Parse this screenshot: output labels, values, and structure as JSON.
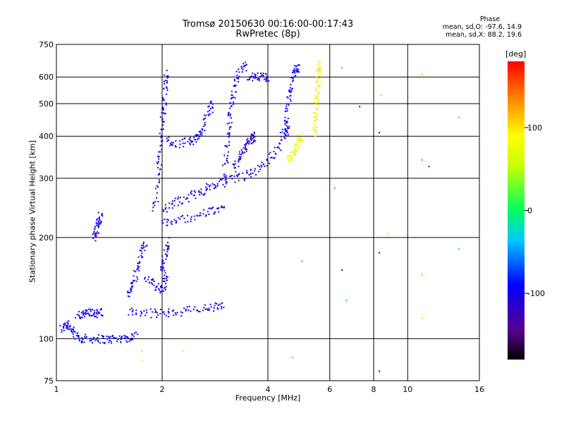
{
  "header": {
    "title": "Tromsø 20150630 00:16:00-00:17:43",
    "subtitle": "RwPretec (8p)"
  },
  "stats": {
    "title": "Phase",
    "line_o": "mean, sd,O: -97.6, 14.9",
    "line_x": "mean, sd,X: 88.2, 19.6"
  },
  "colorbar": {
    "unit": "[deg]",
    "ticks": [
      "100",
      "0",
      "-100"
    ],
    "tick_values": [
      100,
      0,
      -100
    ],
    "range": [
      -180,
      180
    ]
  },
  "chart_data": {
    "type": "scatter",
    "xlabel": "Frequency [MHz]",
    "ylabel": "Stationary phase Virtual Height [km]",
    "xscale": "log",
    "yscale": "log",
    "xlim": [
      1,
      16
    ],
    "ylim": [
      75,
      750
    ],
    "xticks": [
      1,
      2,
      4,
      6,
      8,
      10,
      16
    ],
    "xtick_labels": [
      "1",
      "2",
      "4",
      "6",
      "8",
      "10",
      "16"
    ],
    "yticks": [
      75,
      100,
      200,
      300,
      400,
      500,
      600,
      750
    ],
    "ytick_labels": [
      "75",
      "100",
      "200",
      "300",
      "400",
      "500",
      "600",
      "750"
    ],
    "grid": true,
    "traces": [
      {
        "phase": -95,
        "points": [
          [
            1.03,
            106
          ],
          [
            1.07,
            112
          ],
          [
            1.1,
            106
          ],
          [
            1.15,
            101
          ],
          [
            1.2,
            100
          ],
          [
            1.3,
            100
          ],
          [
            1.4,
            99.5
          ],
          [
            1.5,
            100
          ],
          [
            1.6,
            100.5
          ],
          [
            1.7,
            102
          ]
        ]
      },
      {
        "phase": -100,
        "points": [
          [
            1.15,
            118
          ],
          [
            1.2,
            119
          ],
          [
            1.25,
            119
          ],
          [
            1.3,
            119
          ],
          [
            1.35,
            120
          ]
        ]
      },
      {
        "phase": -100,
        "points": [
          [
            1.28,
            200
          ],
          [
            1.3,
            210
          ],
          [
            1.32,
            225
          ],
          [
            1.34,
            235
          ]
        ]
      },
      {
        "phase": -95,
        "points": [
          [
            1.6,
            135
          ],
          [
            1.65,
            145
          ],
          [
            1.7,
            160
          ],
          [
            1.75,
            180
          ],
          [
            1.8,
            195
          ]
        ]
      },
      {
        "phase": -100,
        "points": [
          [
            1.6,
            120
          ],
          [
            1.8,
            119
          ],
          [
            2.0,
            119
          ],
          [
            2.2,
            120
          ],
          [
            2.5,
            122
          ],
          [
            2.8,
            124
          ],
          [
            3.0,
            125
          ]
        ]
      },
      {
        "phase": -100,
        "points": [
          [
            1.8,
            150
          ],
          [
            1.9,
            145
          ],
          [
            2.0,
            140
          ],
          [
            2.05,
            150
          ],
          [
            2.0,
            165
          ],
          [
            2.05,
            180
          ],
          [
            2.1,
            195
          ]
        ]
      },
      {
        "phase": -100,
        "points": [
          [
            1.9,
            235
          ],
          [
            1.95,
            300
          ],
          [
            1.97,
            350
          ],
          [
            2.0,
            420
          ],
          [
            2.02,
            480
          ],
          [
            2.05,
            560
          ],
          [
            2.05,
            620
          ]
        ]
      },
      {
        "phase": -100,
        "points": [
          [
            2.0,
            240
          ],
          [
            2.2,
            255
          ],
          [
            2.4,
            265
          ],
          [
            2.6,
            275
          ],
          [
            2.8,
            285
          ],
          [
            3.0,
            292
          ]
        ]
      },
      {
        "phase": -100,
        "points": [
          [
            2.0,
            220
          ],
          [
            2.2,
            225
          ],
          [
            2.5,
            232
          ],
          [
            2.8,
            240
          ],
          [
            3.0,
            245
          ]
        ]
      },
      {
        "phase": -100,
        "points": [
          [
            2.05,
            390
          ],
          [
            2.2,
            380
          ],
          [
            2.4,
            385
          ],
          [
            2.5,
            395
          ],
          [
            2.6,
            410
          ],
          [
            2.7,
            470
          ],
          [
            2.8,
            500
          ]
        ]
      },
      {
        "phase": -100,
        "points": [
          [
            3.0,
            300
          ],
          [
            3.05,
            360
          ],
          [
            3.1,
            420
          ],
          [
            3.15,
            480
          ],
          [
            3.2,
            560
          ],
          [
            3.3,
            620
          ],
          [
            3.5,
            650
          ]
        ]
      },
      {
        "phase": -115,
        "points": [
          [
            3.2,
            320
          ],
          [
            3.3,
            340
          ],
          [
            3.4,
            360
          ],
          [
            3.5,
            380
          ],
          [
            3.6,
            395
          ],
          [
            3.7,
            400
          ]
        ]
      },
      {
        "phase": -110,
        "points": [
          [
            3.0,
            295
          ],
          [
            3.3,
            300
          ],
          [
            3.6,
            310
          ],
          [
            3.9,
            330
          ],
          [
            4.2,
            360
          ],
          [
            4.5,
            400
          ],
          [
            4.6,
            440
          ]
        ]
      },
      {
        "phase": -105,
        "points": [
          [
            3.5,
            600
          ],
          [
            3.7,
            600
          ],
          [
            3.9,
            600
          ],
          [
            4.0,
            598
          ]
        ]
      },
      {
        "phase": -95,
        "points": [
          [
            4.4,
            400
          ],
          [
            4.5,
            450
          ],
          [
            4.6,
            520
          ],
          [
            4.7,
            580
          ],
          [
            4.8,
            630
          ],
          [
            4.9,
            640
          ]
        ]
      },
      {
        "phase": 80,
        "points": [
          [
            4.6,
            340
          ],
          [
            4.7,
            350
          ],
          [
            4.8,
            370
          ],
          [
            4.9,
            390
          ],
          [
            5.0,
            400
          ]
        ]
      },
      {
        "phase": 95,
        "points": [
          [
            5.4,
            400
          ],
          [
            5.45,
            450
          ],
          [
            5.5,
            500
          ],
          [
            5.55,
            560
          ],
          [
            5.6,
            620
          ],
          [
            5.6,
            650
          ]
        ]
      }
    ],
    "isolated_points": [
      {
        "x": 1.75,
        "y": 86,
        "phase": 95
      },
      {
        "x": 1.75,
        "y": 92,
        "phase": 110
      },
      {
        "x": 2.3,
        "y": 92,
        "phase": 105
      },
      {
        "x": 4.7,
        "y": 88,
        "phase": -30
      },
      {
        "x": 6.7,
        "y": 130,
        "phase": -40
      },
      {
        "x": 7.3,
        "y": 490,
        "phase": -100
      },
      {
        "x": 8.3,
        "y": 410,
        "phase": -150
      },
      {
        "x": 8.3,
        "y": 180,
        "phase": -150
      },
      {
        "x": 8.3,
        "y": 80,
        "phase": -160
      },
      {
        "x": 8.4,
        "y": 530,
        "phase": 110
      },
      {
        "x": 11.0,
        "y": 610,
        "phase": 115
      },
      {
        "x": 11.0,
        "y": 340,
        "phase": 150
      },
      {
        "x": 11.0,
        "y": 155,
        "phase": 130
      },
      {
        "x": 11.0,
        "y": 115,
        "phase": 110
      },
      {
        "x": 11.5,
        "y": 325,
        "phase": -110
      },
      {
        "x": 14.0,
        "y": 455,
        "phase": -10
      },
      {
        "x": 14.0,
        "y": 185,
        "phase": -10
      },
      {
        "x": 6.2,
        "y": 280,
        "phase": 150
      },
      {
        "x": 6.5,
        "y": 640,
        "phase": -20
      },
      {
        "x": 5.0,
        "y": 170,
        "phase": 150
      },
      {
        "x": 6.5,
        "y": 160,
        "phase": -150
      },
      {
        "x": 8.8,
        "y": 205,
        "phase": 110
      }
    ]
  }
}
